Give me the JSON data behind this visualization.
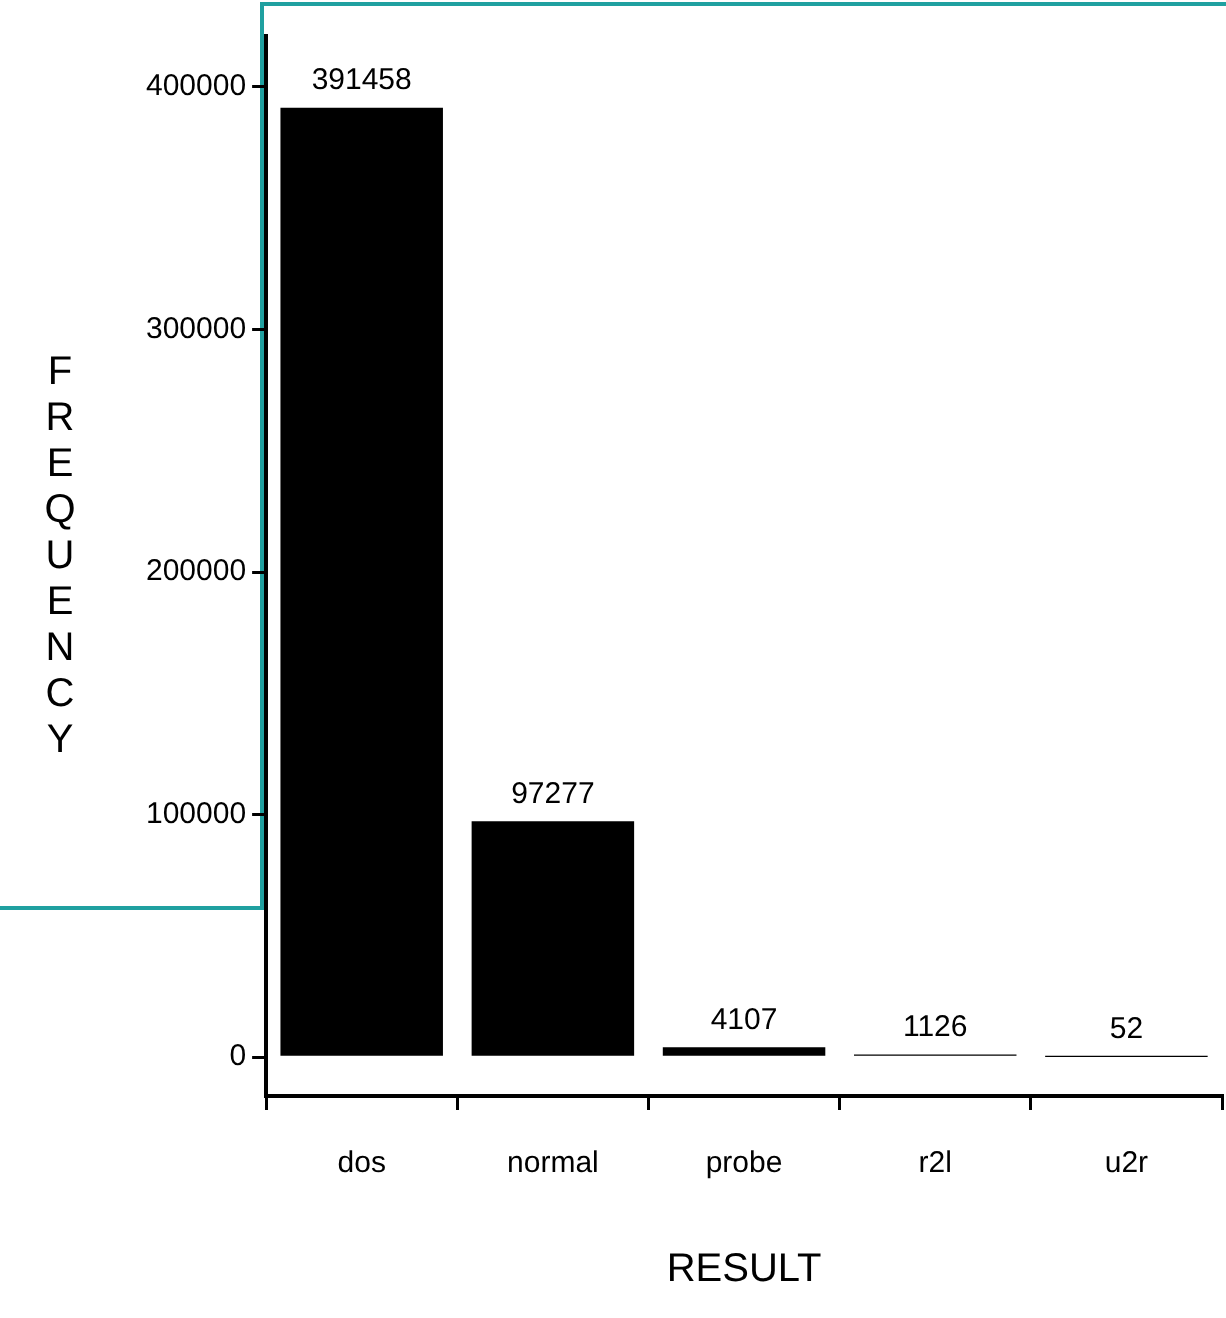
{
  "chart_data": {
    "type": "bar",
    "xlabel": "RESULT",
    "ylabel": "FREQUENCY",
    "categories": [
      "dos",
      "normal",
      "probe",
      "r2l",
      "u2r"
    ],
    "values": [
      391458,
      97277,
      4107,
      1126,
      52
    ],
    "color": "#000000",
    "ylim": [
      -16000,
      421000
    ],
    "yticks": [
      0,
      100000,
      200000,
      300000,
      400000
    ],
    "data_labels": true,
    "grid": false,
    "legend": false
  }
}
